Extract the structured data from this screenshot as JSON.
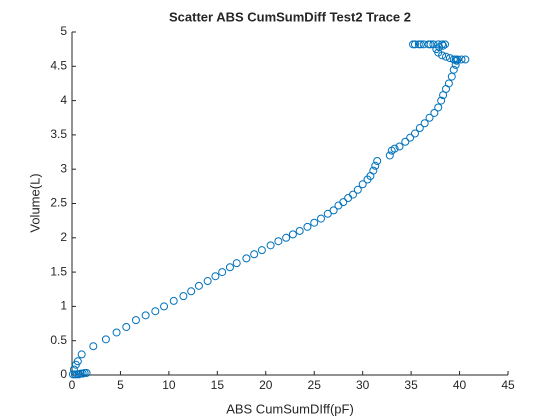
{
  "chart_data": {
    "type": "scatter",
    "title": "Scatter ABS CumSumDiff Test2 Trace 2",
    "xlabel": "ABS CumSumDIff(pF)",
    "ylabel": "Volume(L)",
    "color": "#0072bd",
    "x": [
      0.1,
      0.3,
      0.5,
      0.7,
      0.9,
      1.1,
      1.3,
      1.5,
      0.2,
      0.4,
      0.6,
      1.0,
      2.2,
      3.5,
      4.6,
      5.6,
      6.6,
      7.6,
      8.6,
      9.5,
      10.5,
      11.5,
      12.3,
      13.1,
      14.0,
      14.8,
      15.5,
      16.3,
      17.0,
      18.0,
      18.8,
      19.6,
      20.5,
      21.3,
      22.1,
      22.8,
      23.5,
      24.3,
      25.0,
      25.7,
      26.4,
      27.0,
      27.5,
      28.0,
      28.5,
      29.0,
      29.5,
      30.0,
      30.5,
      30.8,
      31.1,
      31.3,
      31.5,
      32.8,
      33.0,
      33.3,
      33.8,
      34.4,
      34.9,
      35.4,
      35.9,
      36.4,
      36.9,
      37.4,
      37.8,
      38.1,
      38.3,
      38.6,
      38.9,
      39.2,
      39.4,
      39.6,
      39.7,
      39.6,
      39.4,
      39.8,
      40.2,
      40.6,
      39.0,
      38.6,
      38.2,
      37.8,
      37.6,
      37.9,
      38.3,
      38.5,
      38.2,
      37.8,
      37.3,
      36.8,
      36.3,
      35.8,
      35.4,
      35.2,
      36.0,
      37.0
    ],
    "values": [
      0.01,
      0.01,
      0.01,
      0.01,
      0.02,
      0.02,
      0.03,
      0.03,
      0.08,
      0.15,
      0.2,
      0.3,
      0.42,
      0.52,
      0.62,
      0.7,
      0.8,
      0.87,
      0.93,
      1.0,
      1.08,
      1.15,
      1.22,
      1.3,
      1.37,
      1.44,
      1.5,
      1.57,
      1.63,
      1.7,
      1.76,
      1.82,
      1.89,
      1.95,
      2.0,
      2.05,
      2.1,
      2.16,
      2.22,
      2.28,
      2.35,
      2.4,
      2.47,
      2.52,
      2.58,
      2.63,
      2.7,
      2.78,
      2.85,
      2.9,
      2.98,
      3.05,
      3.12,
      3.2,
      3.27,
      3.3,
      3.33,
      3.4,
      3.46,
      3.52,
      3.6,
      3.67,
      3.75,
      3.82,
      3.9,
      4.0,
      4.08,
      4.17,
      4.25,
      4.35,
      4.45,
      4.52,
      4.58,
      4.6,
      4.6,
      4.6,
      4.6,
      4.6,
      4.62,
      4.64,
      4.66,
      4.7,
      4.75,
      4.78,
      4.8,
      4.82,
      4.82,
      4.82,
      4.82,
      4.82,
      4.82,
      4.82,
      4.82,
      4.82,
      4.82,
      4.82
    ],
    "xlim": [
      0,
      45
    ],
    "xticks": [
      0,
      5,
      10,
      15,
      20,
      25,
      30,
      35,
      40,
      45
    ],
    "ylim": [
      0,
      5
    ],
    "yticks": [
      0,
      0.5,
      1,
      1.5,
      2,
      2.5,
      3,
      3.5,
      4,
      4.5,
      5
    ]
  }
}
